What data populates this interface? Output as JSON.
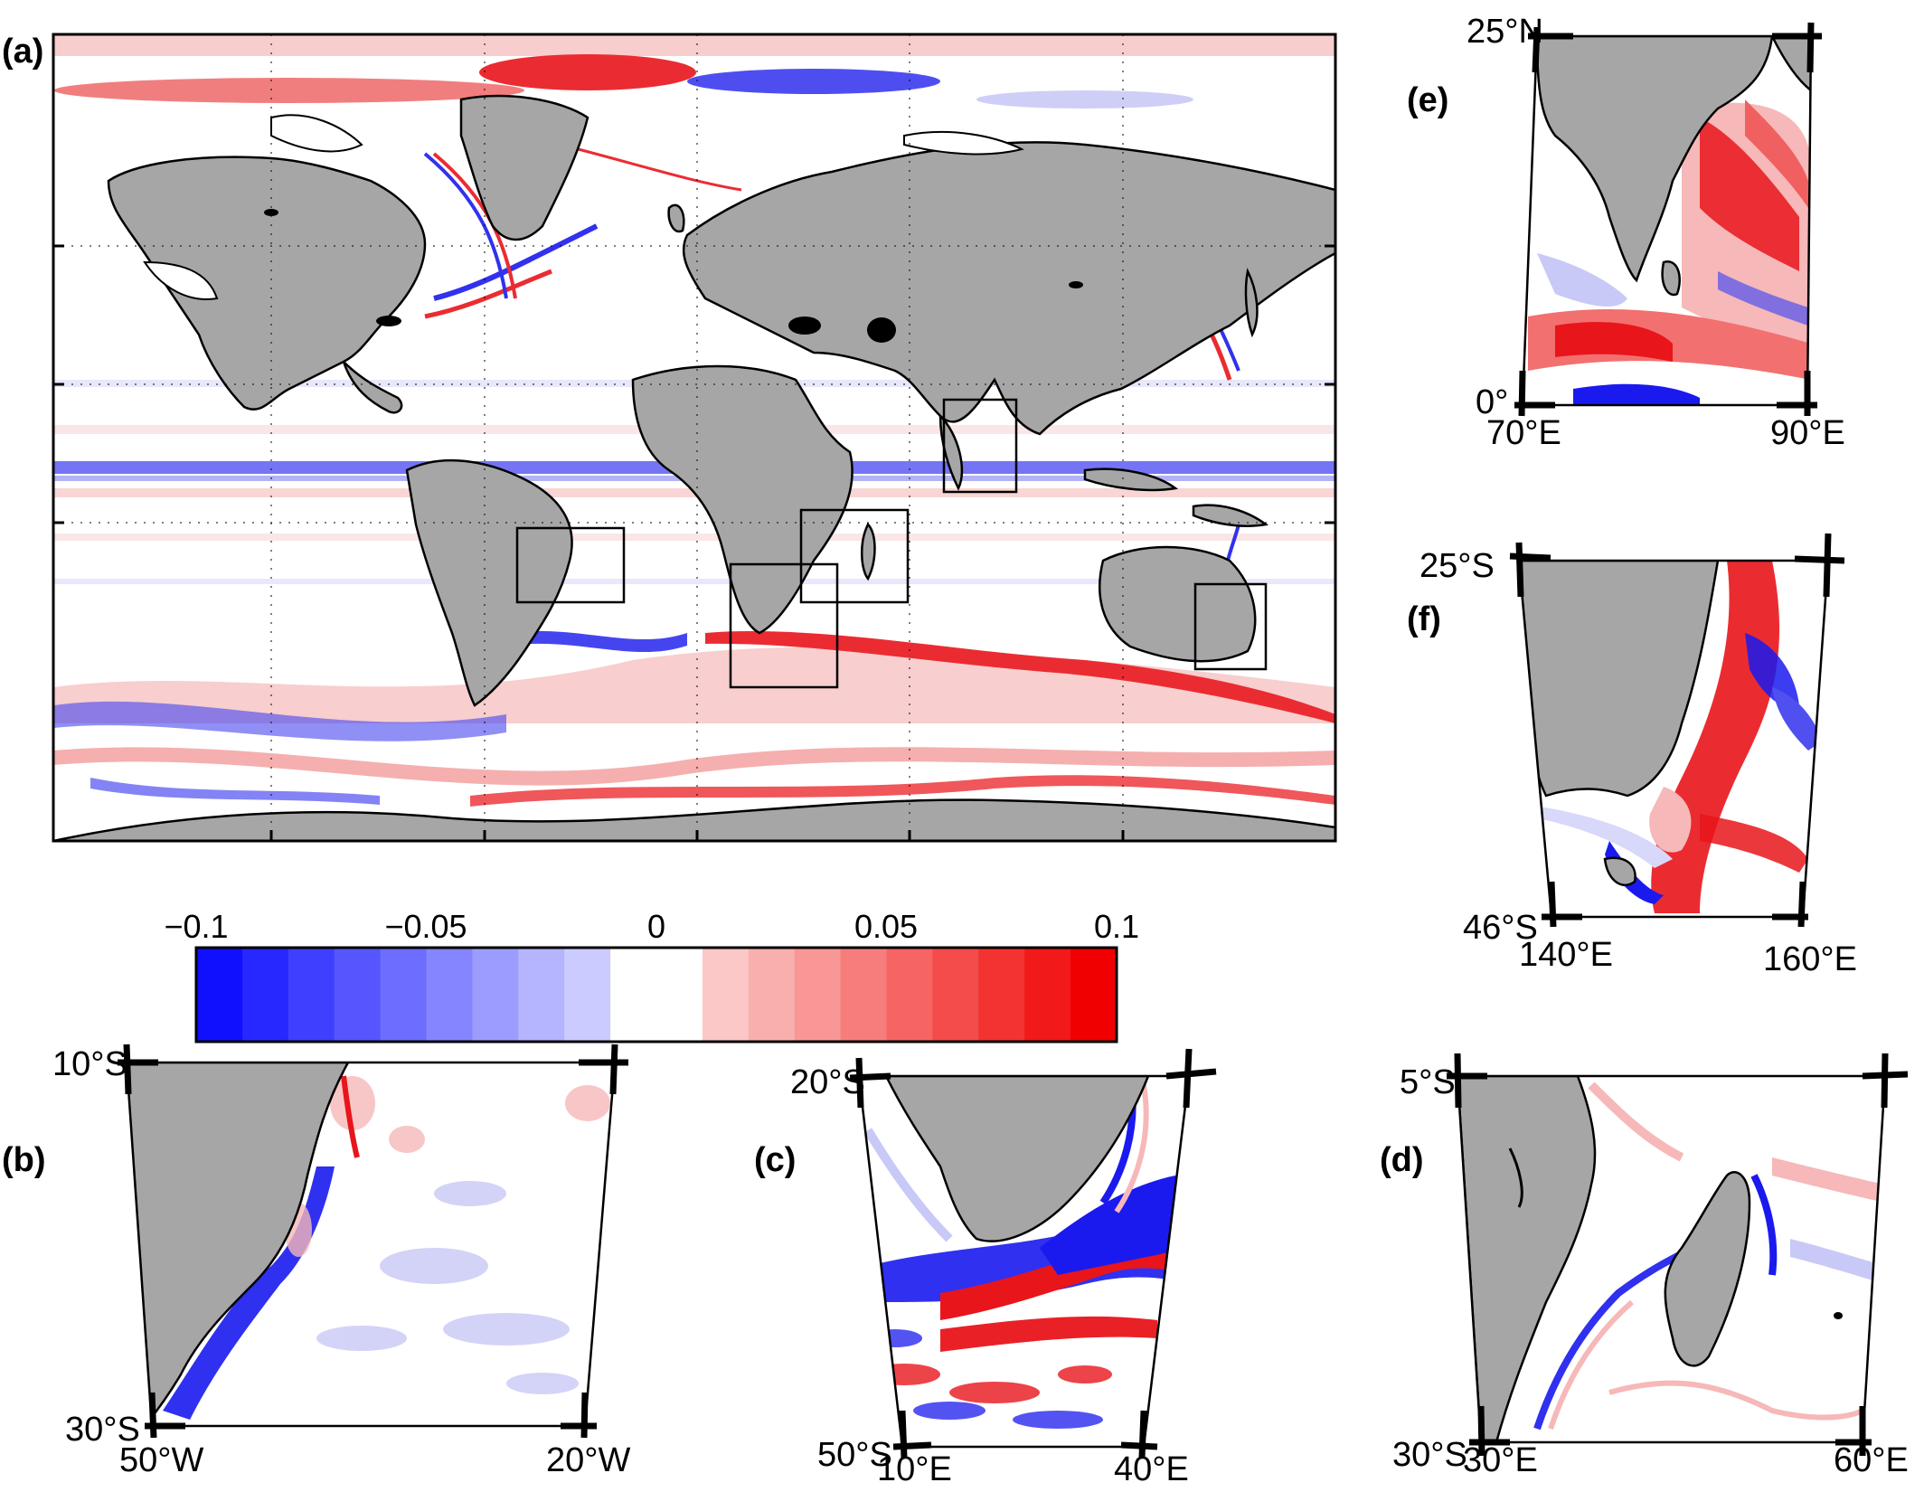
{
  "panels": {
    "a": {
      "letter": "(a)"
    },
    "b": {
      "letter": "(b)",
      "lat_top": "10°S",
      "lat_bottom": "30°S",
      "lon_left": "50°W",
      "lon_right": "20°W"
    },
    "c": {
      "letter": "(c)",
      "lat_top": "20°S",
      "lat_bottom": "50°S",
      "lon_left": "10°E",
      "lon_right": "40°E"
    },
    "d": {
      "letter": "(d)",
      "lat_top": "5°S",
      "lat_bottom": "30°S",
      "lon_left": "30°E",
      "lon_right": "60°E"
    },
    "e": {
      "letter": "(e)",
      "lat_top": "25°N",
      "lat_bottom": "0°",
      "lon_left": "70°E",
      "lon_right": "90°E"
    },
    "f": {
      "letter": "(f)",
      "lat_top": "25°S",
      "lat_bottom": "46°S",
      "lon_left": "140°E",
      "lon_right": "160°E"
    }
  },
  "colorbar": {
    "ticks": [
      "−0.1",
      "−0.05",
      "0",
      "0.05",
      "0.1"
    ],
    "range": [
      -0.1,
      0.1
    ],
    "n_bins": 20,
    "color_min": "#1010ff",
    "color_mid": "#ffffff",
    "color_max": "#f00000"
  },
  "colors": {
    "land": "#a6a6a6",
    "positive": "#e8151b",
    "negative": "#1a1aee",
    "outline": "#000000"
  }
}
